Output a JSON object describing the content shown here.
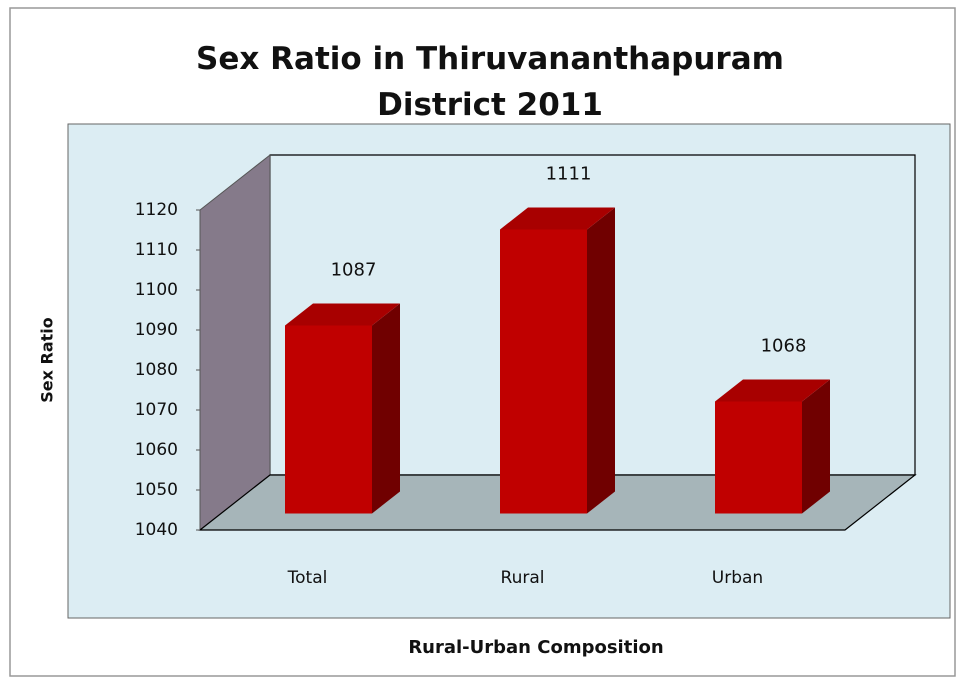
{
  "chart_data": {
    "type": "bar3d",
    "title": "Sex Ratio in Thiruvananthapuram District 2011",
    "x_label": "Rural-Urban Composition",
    "y_label": "Sex Ratio",
    "categories": [
      "Total",
      "Rural",
      "Urban"
    ],
    "values": [
      1087,
      1111,
      1068
    ],
    "color": "#c00000",
    "ylim": [
      1040,
      1120
    ],
    "yticks": [
      1040,
      1050,
      1060,
      1070,
      1080,
      1090,
      1100,
      1110,
      1120
    ],
    "grid": false
  }
}
